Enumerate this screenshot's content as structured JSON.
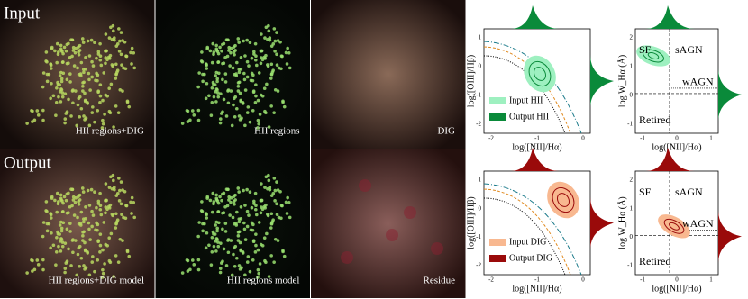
{
  "rows": [
    "Input",
    "Output"
  ],
  "panels": [
    [
      "HII regions+DIG",
      "HII regions",
      "DIG"
    ],
    [
      "HII regions+DIG model",
      "HII regions model",
      "Residue"
    ]
  ],
  "bpt": {
    "y_label": "log([OIII]/Hβ)",
    "x_label": "log([NII]/Hα)",
    "xticks": [
      -2,
      -1,
      0
    ],
    "yticks": [
      1,
      0,
      -1,
      -2
    ]
  },
  "whan": {
    "y_label": "log W_Hα (Å)",
    "x_label": "log([NII]/Hα)",
    "xticks": [
      -1,
      0,
      1
    ],
    "yticks": [
      2,
      1,
      0,
      -1
    ],
    "regions": [
      "SF",
      "sAGN",
      "wAGN",
      "Retired"
    ]
  },
  "legends": [
    [
      "Input HII",
      "Output HII"
    ],
    [
      "Input DIG",
      "Output DIG"
    ]
  ]
}
